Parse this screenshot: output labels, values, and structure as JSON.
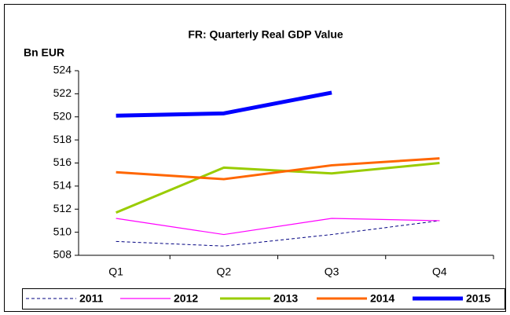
{
  "chart_data": {
    "type": "line",
    "title": "FR: Quarterly Real GDP Value",
    "y_label": "Bn EUR",
    "categories": [
      "Q1",
      "Q2",
      "Q3",
      "Q4"
    ],
    "ylim": [
      508,
      524
    ],
    "yticks": [
      508,
      510,
      512,
      514,
      516,
      518,
      520,
      522,
      524
    ],
    "grid": false,
    "legend": "bottom",
    "series": [
      {
        "name": "2011",
        "color": "#000080",
        "width": 1,
        "dashed": true,
        "values": [
          509.2,
          508.8,
          509.8,
          511.0
        ]
      },
      {
        "name": "2012",
        "color": "#ff00ff",
        "width": 1.2,
        "dashed": false,
        "values": [
          511.2,
          509.8,
          511.2,
          511.0
        ]
      },
      {
        "name": "2013",
        "color": "#99cc00",
        "width": 3,
        "dashed": false,
        "values": [
          511.7,
          515.6,
          515.1,
          516.0
        ]
      },
      {
        "name": "2014",
        "color": "#ff6600",
        "width": 3,
        "dashed": false,
        "values": [
          515.2,
          514.6,
          515.8,
          516.4
        ]
      },
      {
        "name": "2015",
        "color": "#0000ff",
        "width": 5,
        "dashed": false,
        "values": [
          520.1,
          520.3,
          522.1,
          null
        ]
      }
    ]
  }
}
